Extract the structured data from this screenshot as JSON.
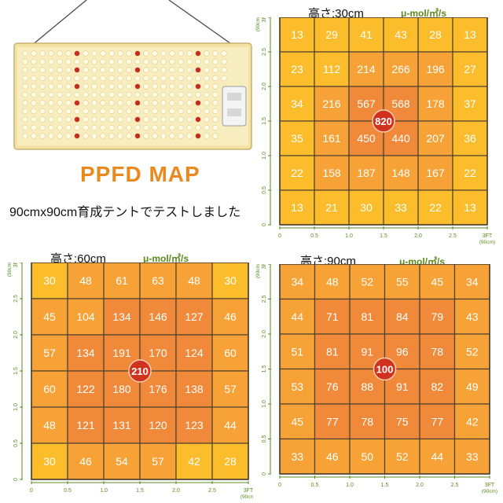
{
  "headline": "PPFD MAP",
  "caption": "90cmx90cm育成テントでテストしました",
  "unit_label": "μ-mol/㎡/s",
  "axis": {
    "ticks": [
      "0",
      "0.5",
      "1.0",
      "1.5",
      "2.0",
      "2.5",
      "3FT"
    ],
    "end_sub": "(90cm)"
  },
  "colors": {
    "low": "#fbbd2c",
    "mid": "#f7a236",
    "high": "#f08a3a",
    "peak": "#d0321f",
    "grid": "#4a4030",
    "axis_label": "#5a8a1c"
  },
  "chart_data": [
    {
      "type": "heatmap",
      "title": "高さ:30cm",
      "unit": "μ-mol/㎡/s",
      "rows": [
        [
          13,
          29,
          41,
          43,
          28,
          13
        ],
        [
          23,
          112,
          214,
          266,
          196,
          27
        ],
        [
          34,
          216,
          567,
          568,
          178,
          37
        ],
        [
          35,
          161,
          450,
          440,
          207,
          36
        ],
        [
          22,
          158,
          187,
          148,
          167,
          22
        ],
        [
          13,
          21,
          30,
          33,
          22,
          13
        ]
      ],
      "center_value": 820
    },
    {
      "type": "heatmap",
      "title": "高さ:60cm",
      "unit": "μ-mol/㎡/s",
      "rows": [
        [
          30,
          48,
          61,
          63,
          48,
          30
        ],
        [
          45,
          104,
          134,
          146,
          127,
          46
        ],
        [
          57,
          134,
          191,
          170,
          124,
          60
        ],
        [
          60,
          122,
          180,
          176,
          138,
          57
        ],
        [
          48,
          121,
          131,
          120,
          123,
          44
        ],
        [
          30,
          46,
          54,
          57,
          42,
          28
        ]
      ],
      "center_value": 210
    },
    {
      "type": "heatmap",
      "title": "高さ:90cm",
      "unit": "μ-mol/㎡/s",
      "rows": [
        [
          34,
          48,
          52,
          55,
          45,
          34
        ],
        [
          44,
          71,
          81,
          84,
          79,
          43
        ],
        [
          51,
          81,
          91,
          96,
          78,
          52
        ],
        [
          53,
          76,
          88,
          91,
          82,
          49
        ],
        [
          45,
          77,
          78,
          75,
          77,
          42
        ],
        [
          33,
          46,
          50,
          52,
          44,
          33
        ]
      ],
      "center_value": 100
    }
  ]
}
